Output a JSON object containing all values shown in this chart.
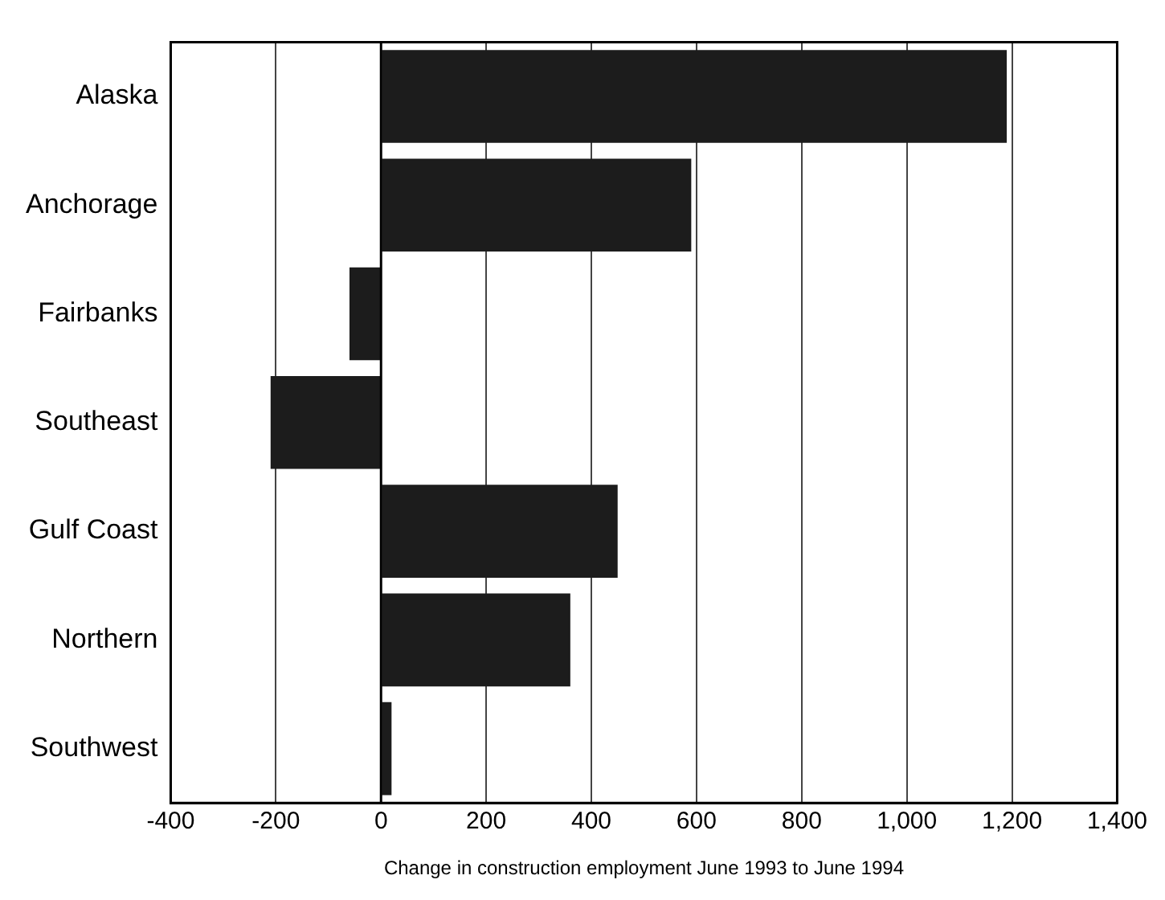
{
  "chart_data": {
    "type": "bar",
    "orientation": "horizontal",
    "xlabel": "Change in construction employment June 1993 to June 1994",
    "categories": [
      "Alaska",
      "Anchorage",
      "Fairbanks",
      "Southeast",
      "Gulf Coast",
      "Northern",
      "Southwest"
    ],
    "values": [
      1190,
      590,
      -60,
      -210,
      450,
      360,
      20
    ],
    "color": "#1c1c1c",
    "xlim": [
      -400,
      1400
    ],
    "xticks": [
      -400,
      -200,
      0,
      200,
      {
        "value": 1000,
        "label": "1,000"
      },
      {
        "value": 1200,
        "label": "1,200"
      },
      {
        "value": 1400,
        "label": "1,400"
      },
      400,
      600,
      800
    ],
    "grid": "x",
    "legend": false
  }
}
